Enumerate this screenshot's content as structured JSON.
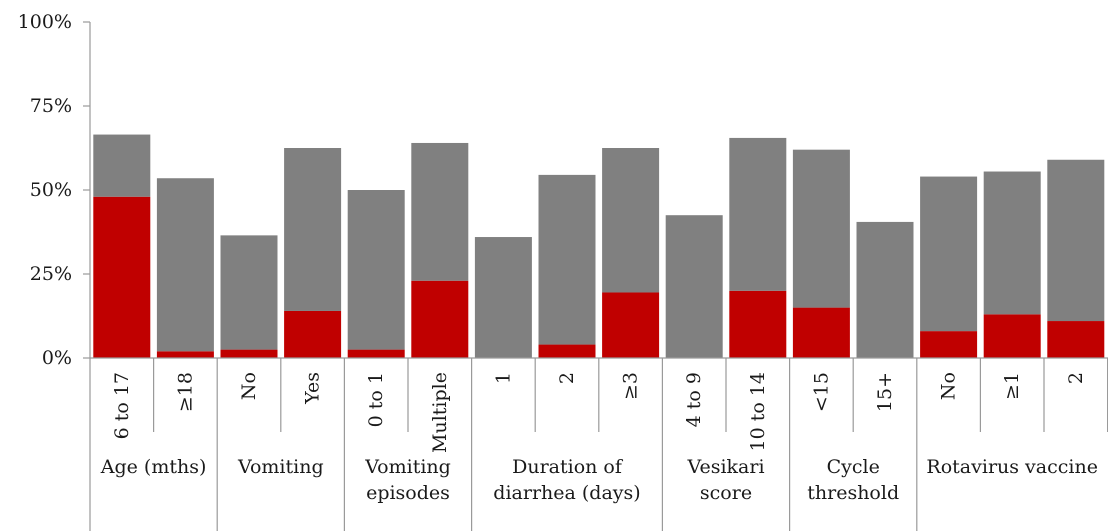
{
  "chart_data": {
    "type": "bar",
    "stacked": true,
    "y_ticks": [
      "0%",
      "25%",
      "50%",
      "75%",
      "100%"
    ],
    "ylim": [
      0,
      100
    ],
    "grid": false,
    "colors": {
      "red": "#c00000",
      "gray": "#808080"
    },
    "groups": [
      {
        "label_lines": [
          "Age (mths)"
        ],
        "categories": [
          "6 to 17",
          "≥18"
        ]
      },
      {
        "label_lines": [
          "Vomiting"
        ],
        "categories": [
          "No",
          "Yes"
        ]
      },
      {
        "label_lines": [
          "Vomiting",
          "episodes"
        ],
        "categories": [
          "0 to 1",
          "Multiple"
        ]
      },
      {
        "label_lines": [
          "Duration of",
          "diarrhea (days)"
        ],
        "categories": [
          "1",
          "2",
          "≥3"
        ]
      },
      {
        "label_lines": [
          "Vesikari",
          "score"
        ],
        "categories": [
          "4 to 9",
          "10 to 14"
        ]
      },
      {
        "label_lines": [
          "Cycle",
          "threshold"
        ],
        "categories": [
          "<15",
          "15+"
        ]
      },
      {
        "label_lines": [
          "Rotavirus vaccine"
        ],
        "categories": [
          "No",
          "≥1",
          "2"
        ]
      }
    ],
    "categories": [
      "6 to 17",
      "≥18",
      "No",
      "Yes",
      "0 to 1",
      "Multiple",
      "1",
      "2",
      "≥3",
      "4 to 9",
      "10 to 14",
      "<15",
      "15+",
      "No",
      "≥1",
      "2"
    ],
    "series": [
      {
        "color": "#c00000",
        "values": [
          48,
          2,
          2.5,
          14,
          2.5,
          23,
          0,
          4,
          19.5,
          0,
          20,
          15,
          0,
          8,
          13,
          11
        ]
      },
      {
        "color": "#808080",
        "values": [
          18.5,
          51.5,
          34,
          48.5,
          47.5,
          41,
          36,
          50.5,
          43,
          42.5,
          45.5,
          47,
          40.5,
          46,
          42.5,
          48
        ]
      }
    ]
  }
}
